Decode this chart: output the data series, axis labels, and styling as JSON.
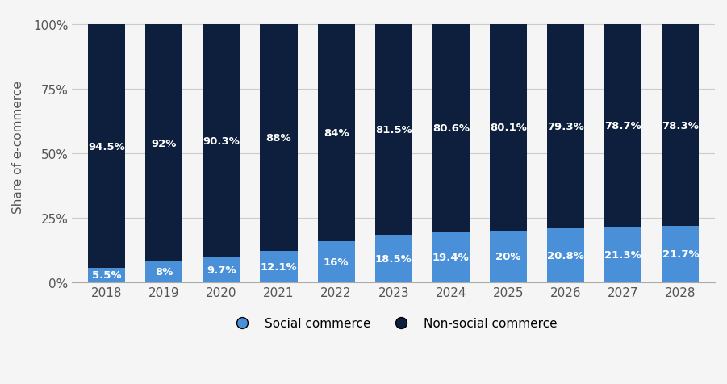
{
  "years": [
    "2018",
    "2019",
    "2020",
    "2021",
    "2022",
    "2023",
    "2024",
    "2025",
    "2026",
    "2027",
    "2028"
  ],
  "social_commerce": [
    5.5,
    8.0,
    9.7,
    12.1,
    16.0,
    18.5,
    19.4,
    20.0,
    20.8,
    21.3,
    21.7
  ],
  "non_social_commerce": [
    94.5,
    92.0,
    90.3,
    88.0,
    84.0,
    81.5,
    80.6,
    80.1,
    79.3,
    78.7,
    78.3
  ],
  "social_labels": [
    "5.5%",
    "8%",
    "9.7%",
    "12.1%",
    "16%",
    "18.5%",
    "19.4%",
    "20%",
    "20.8%",
    "21.3%",
    "21.7%"
  ],
  "non_social_labels": [
    "94.5%",
    "92%",
    "90.3%",
    "88%",
    "84%",
    "81.5%",
    "80.6%",
    "80.1%",
    "79.3%",
    "78.7%",
    "78.3%"
  ],
  "social_color": "#4a90d9",
  "non_social_color": "#0d1f3c",
  "background_color": "#f5f5f5",
  "ylabel": "Share of e-commerce",
  "yticks": [
    0,
    25,
    50,
    75,
    100
  ],
  "ytick_labels": [
    "0%",
    "25%",
    "50%",
    "75%",
    "100%"
  ],
  "legend_social": "Social commerce",
  "legend_non_social": "Non-social commerce",
  "bar_width": 0.65,
  "label_fontsize": 9.5,
  "label_color": "white",
  "label_fontweight": "bold"
}
